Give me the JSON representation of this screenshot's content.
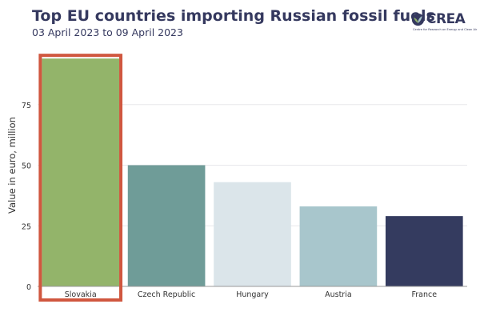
{
  "header": {
    "title": "Top EU countries importing Russian fossil fuels",
    "subtitle": "03 April 2023 to 09 April 2023"
  },
  "logo": {
    "text": "CREA",
    "tagline": "Centre for Research on Energy and Clean Air",
    "icon": "leaf-sprout-icon"
  },
  "chart_data": {
    "type": "bar",
    "title": "Top EU countries importing Russian fossil fuels",
    "subtitle": "03 April 2023 to 09 April 2023",
    "xlabel": "",
    "ylabel": "Value in euro, million",
    "categories": [
      "Slovakia",
      "Czech Republic",
      "Hungary",
      "Austria",
      "France"
    ],
    "values": [
      94,
      50,
      43,
      33,
      29
    ],
    "colors": [
      "#93b46a",
      "#6f9c98",
      "#dbe5ea",
      "#a8c6cc",
      "#343b5f"
    ],
    "ylim": [
      0,
      100
    ],
    "yticks": [
      0,
      25,
      50,
      75
    ],
    "grid": true,
    "highlight": {
      "category": "Slovakia",
      "color": "#d0573f"
    }
  }
}
